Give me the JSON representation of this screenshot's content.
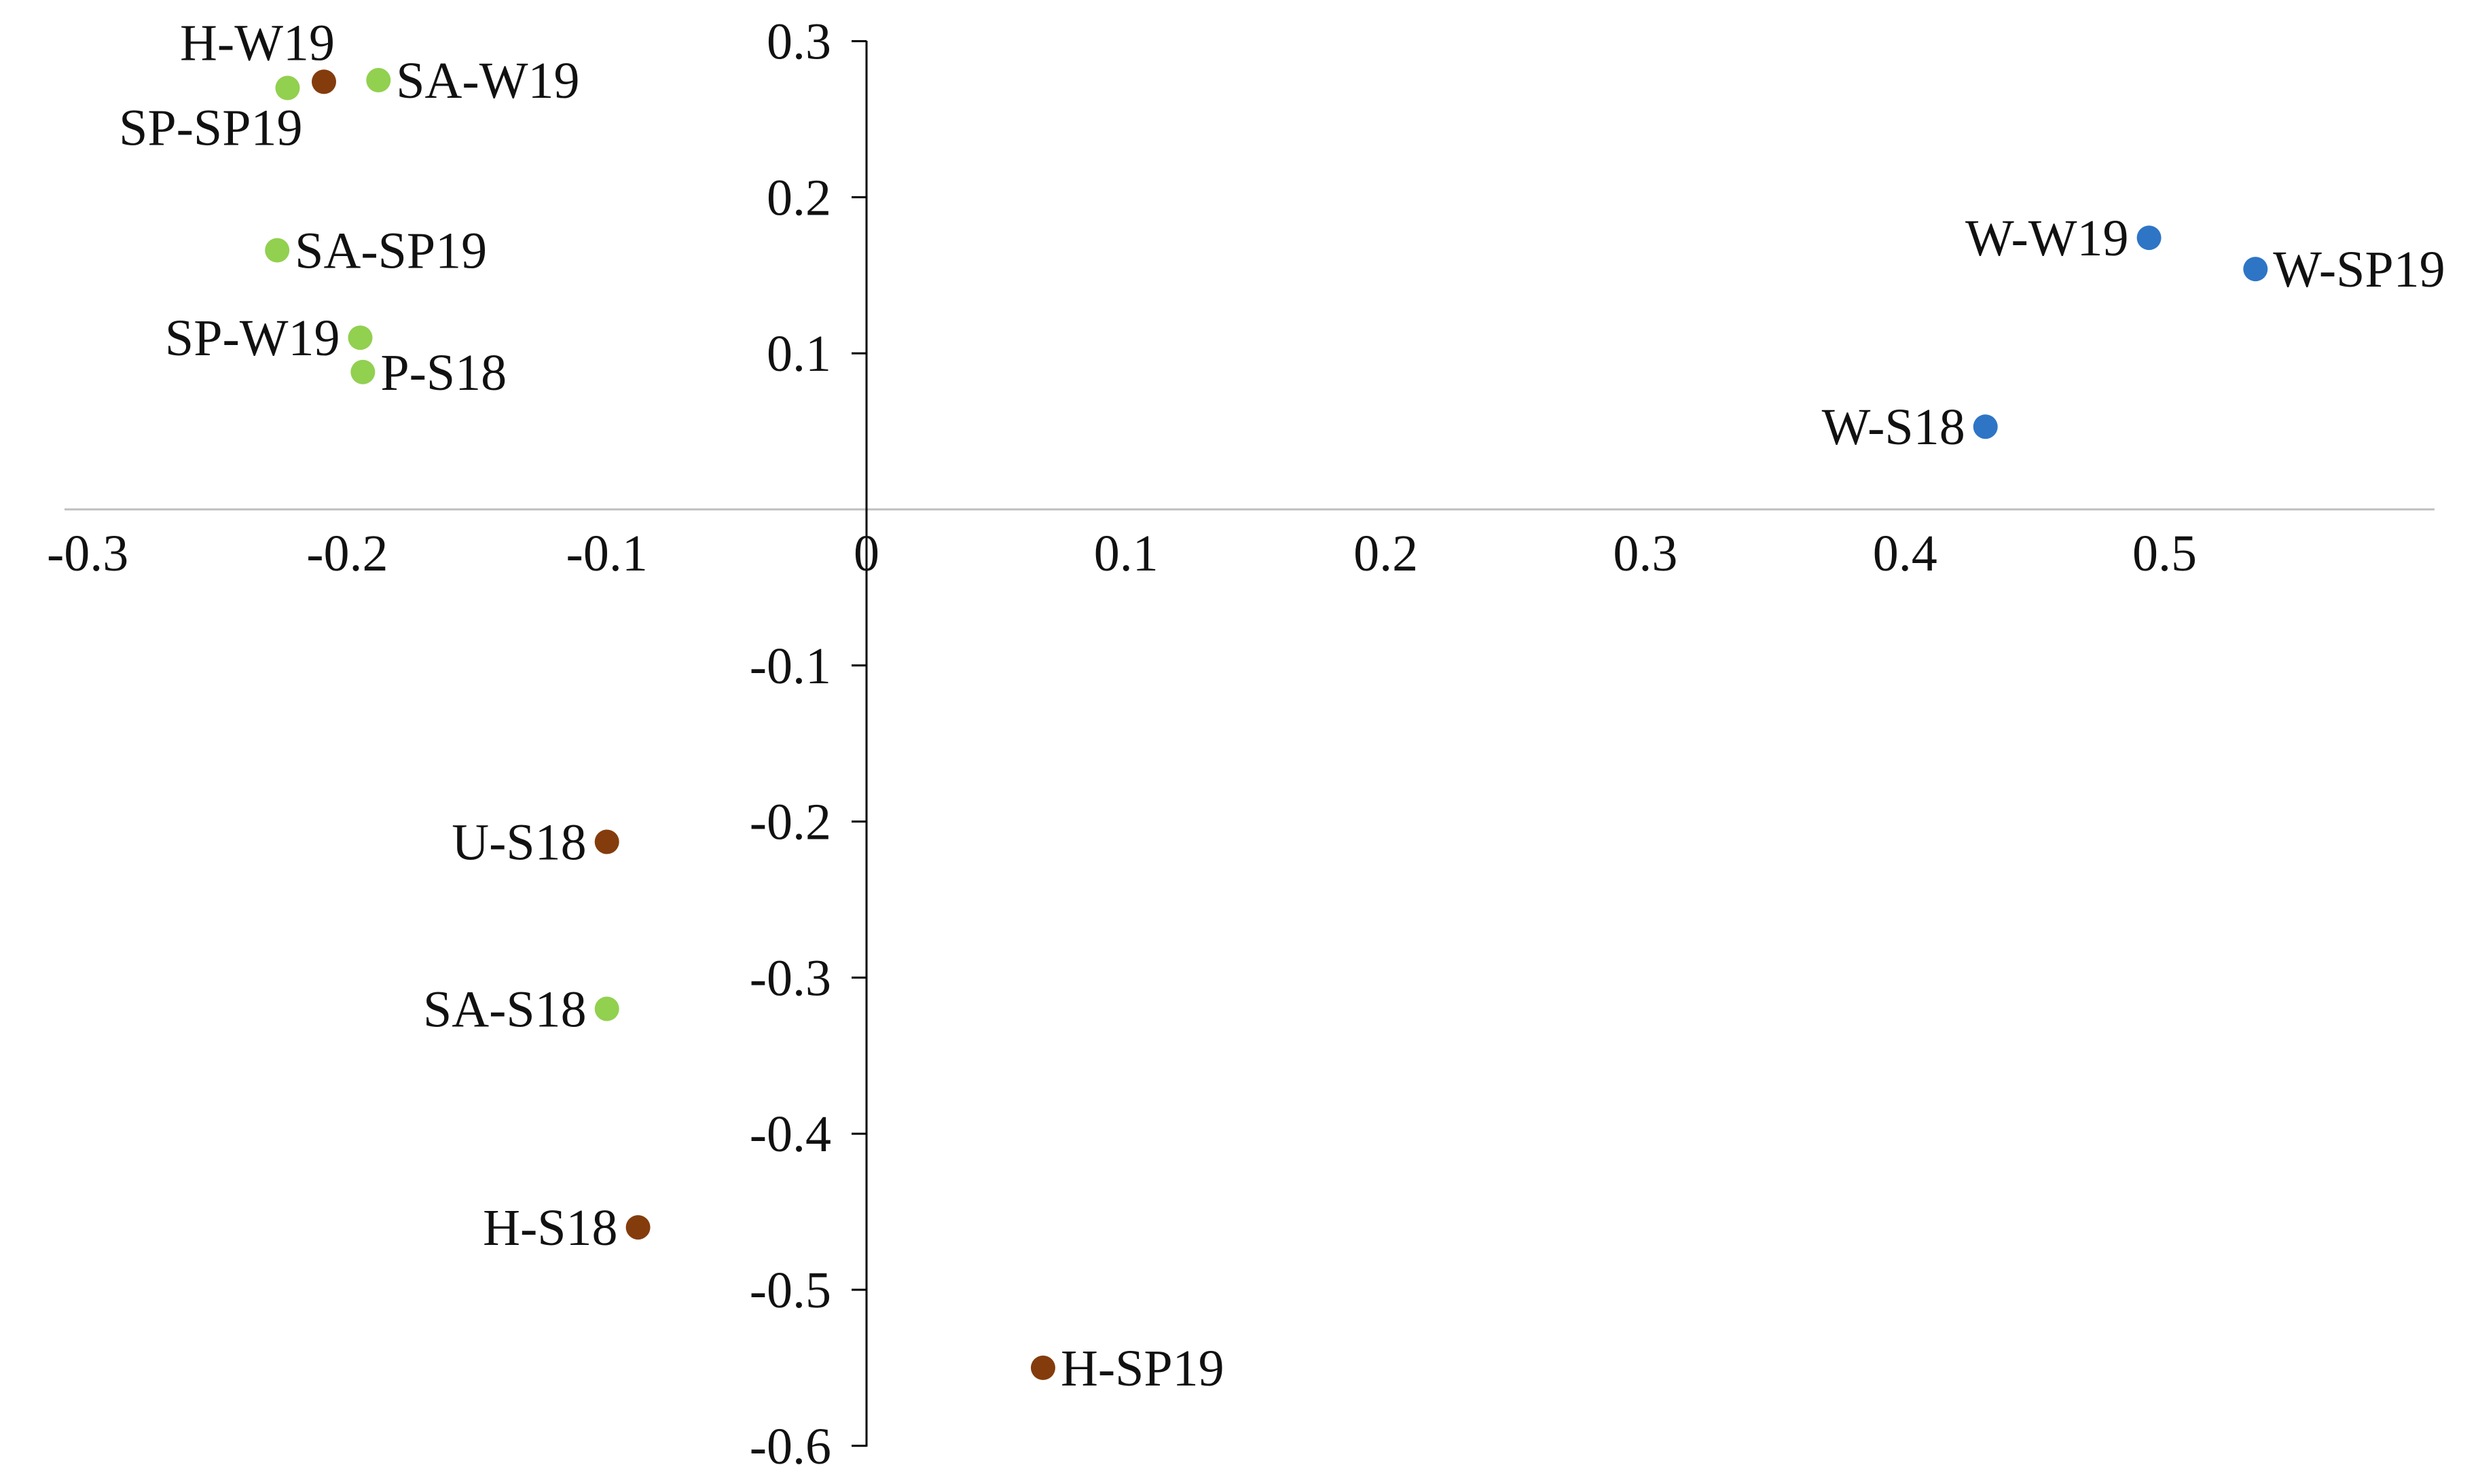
{
  "chart_data": {
    "type": "scatter",
    "title": "",
    "xlabel": "",
    "ylabel": "",
    "xlim": [
      -0.3,
      0.6
    ],
    "ylim": [
      -0.6,
      0.3
    ],
    "grid": false,
    "x_ticks": [
      {
        "value": -0.3,
        "label": "-0.3"
      },
      {
        "value": -0.2,
        "label": "-0.2"
      },
      {
        "value": -0.1,
        "label": "-0.1"
      },
      {
        "value": 0,
        "label": "0"
      },
      {
        "value": 0.1,
        "label": "0.1"
      },
      {
        "value": 0.2,
        "label": "0.2"
      },
      {
        "value": 0.3,
        "label": "0.3"
      },
      {
        "value": 0.4,
        "label": "0.4"
      },
      {
        "value": 0.5,
        "label": "0.5"
      }
    ],
    "y_ticks": [
      {
        "value": 0.3,
        "label": "0.3"
      },
      {
        "value": 0.2,
        "label": "0.2"
      },
      {
        "value": 0.1,
        "label": "0.1"
      },
      {
        "value": -0.1,
        "label": "-0.1"
      },
      {
        "value": -0.2,
        "label": "-0.2"
      },
      {
        "value": -0.3,
        "label": "-0.3"
      },
      {
        "value": -0.4,
        "label": "-0.4"
      },
      {
        "value": -0.5,
        "label": "-0.5"
      },
      {
        "value": -0.6,
        "label": "-0.6"
      }
    ],
    "series": [
      {
        "name": "green",
        "color": "#92d050",
        "points": [
          {
            "label": "SP-SP19",
            "x": -0.223,
            "y": 0.27,
            "label_side": "below-left"
          },
          {
            "label": "SA-W19",
            "x": -0.188,
            "y": 0.275,
            "label_side": "right"
          },
          {
            "label": "SA-SP19",
            "x": -0.227,
            "y": 0.166,
            "label_side": "right"
          },
          {
            "label": "SP-W19",
            "x": -0.195,
            "y": 0.11,
            "label_side": "left"
          },
          {
            "label": "P-S18",
            "x": -0.194,
            "y": 0.088,
            "label_side": "right"
          },
          {
            "label": "SA-S18",
            "x": -0.1,
            "y": -0.32,
            "label_side": "left"
          }
        ]
      },
      {
        "name": "brown",
        "color": "#843c0c",
        "points": [
          {
            "label": "H-W19",
            "x": -0.209,
            "y": 0.274,
            "label_side": "above-left"
          },
          {
            "label": "U-S18",
            "x": -0.1,
            "y": -0.213,
            "label_side": "left"
          },
          {
            "label": "H-S18",
            "x": -0.088,
            "y": -0.46,
            "label_side": "left"
          },
          {
            "label": "H-SP19",
            "x": 0.068,
            "y": -0.55,
            "label_side": "right"
          }
        ]
      },
      {
        "name": "blue",
        "color": "#2e75c6",
        "points": [
          {
            "label": "W-W19",
            "x": 0.494,
            "y": 0.174,
            "label_side": "left"
          },
          {
            "label": "W-SP19",
            "x": 0.535,
            "y": 0.154,
            "label_side": "right"
          },
          {
            "label": "W-S18",
            "x": 0.431,
            "y": 0.053,
            "label_side": "left"
          }
        ]
      }
    ]
  }
}
